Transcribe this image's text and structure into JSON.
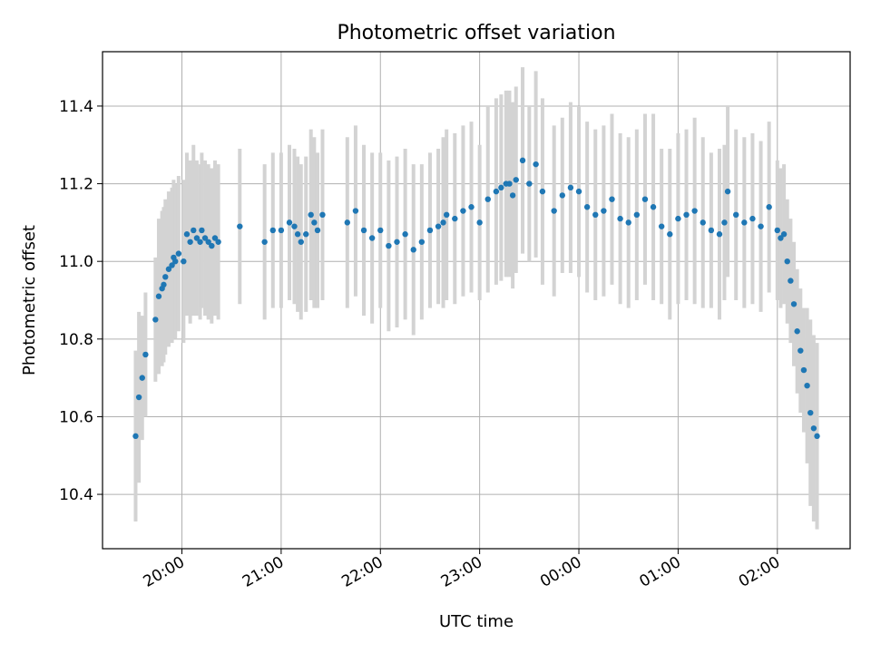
{
  "chart_data": {
    "type": "scatter",
    "title": "Photometric offset variation",
    "xlabel": "UTC time",
    "ylabel": "Photometric offset",
    "x_unit": "UTC clock time (hours after midnight of the first night; values above 24 are after midnight)",
    "xlim": [
      "19:12",
      "02:44"
    ],
    "ylim": [
      10.26,
      11.54
    ],
    "x_ticks": [
      "20:00",
      "21:00",
      "22:00",
      "23:00",
      "00:00",
      "01:00",
      "02:00"
    ],
    "y_ticks": [
      "10.4",
      "10.6",
      "10.8",
      "11.0",
      "11.2",
      "11.4"
    ],
    "grid": true,
    "point_color": "#1f77b4",
    "errorbar_color": "#d3d3d3",
    "series": [
      {
        "name": "",
        "x": [
          "19:32",
          "19:34",
          "19:36",
          "19:38",
          "19:44",
          "19:46",
          "19:48",
          "19:49",
          "19:50",
          "19:52",
          "19:54",
          "19:55",
          "19:56",
          "19:58",
          "20:01",
          "20:03",
          "20:05",
          "20:07",
          "20:09",
          "20:11",
          "20:12",
          "20:14",
          "20:16",
          "20:18",
          "20:20",
          "20:22",
          "20:35",
          "20:50",
          "20:55",
          "21:00",
          "21:05",
          "21:08",
          "21:10",
          "21:12",
          "21:15",
          "21:18",
          "21:20",
          "21:22",
          "21:25",
          "21:40",
          "21:45",
          "21:50",
          "21:55",
          "22:00",
          "22:05",
          "22:10",
          "22:15",
          "22:20",
          "22:25",
          "22:30",
          "22:35",
          "22:38",
          "22:40",
          "22:45",
          "22:50",
          "22:55",
          "23:00",
          "23:05",
          "23:10",
          "23:13",
          "23:16",
          "23:18",
          "23:20",
          "23:22",
          "23:26",
          "23:30",
          "23:34",
          "23:38",
          "23:45",
          "23:50",
          "23:55",
          "00:00",
          "00:05",
          "00:10",
          "00:15",
          "00:20",
          "00:25",
          "00:30",
          "00:35",
          "00:40",
          "00:45",
          "00:50",
          "00:55",
          "01:00",
          "01:05",
          "01:10",
          "01:15",
          "01:20",
          "01:25",
          "01:28",
          "01:30",
          "01:35",
          "01:40",
          "01:45",
          "01:50",
          "01:55",
          "02:00",
          "02:02",
          "02:04",
          "02:06",
          "02:08",
          "02:10",
          "02:12",
          "02:14",
          "02:16",
          "02:18",
          "02:20",
          "02:22",
          "02:24"
        ],
        "y": [
          10.55,
          10.65,
          10.7,
          10.76,
          10.85,
          10.91,
          10.93,
          10.94,
          10.96,
          10.98,
          10.99,
          11.01,
          11.0,
          11.02,
          11.0,
          11.07,
          11.05,
          11.08,
          11.06,
          11.05,
          11.08,
          11.06,
          11.05,
          11.04,
          11.06,
          11.05,
          11.09,
          11.05,
          11.08,
          11.08,
          11.1,
          11.09,
          11.07,
          11.05,
          11.07,
          11.12,
          11.1,
          11.08,
          11.12,
          11.1,
          11.13,
          11.08,
          11.06,
          11.08,
          11.04,
          11.05,
          11.07,
          11.03,
          11.05,
          11.08,
          11.09,
          11.1,
          11.12,
          11.11,
          11.13,
          11.14,
          11.1,
          11.16,
          11.18,
          11.19,
          11.2,
          11.2,
          11.17,
          11.21,
          11.26,
          11.2,
          11.25,
          11.18,
          11.13,
          11.17,
          11.19,
          11.18,
          11.14,
          11.12,
          11.13,
          11.16,
          11.11,
          11.1,
          11.12,
          11.16,
          11.14,
          11.09,
          11.07,
          11.11,
          11.12,
          11.13,
          11.1,
          11.08,
          11.07,
          11.1,
          11.18,
          11.12,
          11.1,
          11.11,
          11.09,
          11.14,
          11.08,
          11.06,
          11.07,
          11.0,
          10.95,
          10.89,
          10.82,
          10.77,
          10.72,
          10.68,
          10.61,
          10.57,
          10.55
        ],
        "err": [
          0.22,
          0.22,
          0.16,
          0.16,
          0.16,
          0.2,
          0.2,
          0.2,
          0.2,
          0.2,
          0.2,
          0.2,
          0.2,
          0.2,
          0.21,
          0.21,
          0.21,
          0.22,
          0.2,
          0.2,
          0.2,
          0.2,
          0.2,
          0.2,
          0.2,
          0.2,
          0.2,
          0.2,
          0.2,
          0.2,
          0.2,
          0.2,
          0.2,
          0.2,
          0.2,
          0.22,
          0.22,
          0.2,
          0.22,
          0.22,
          0.22,
          0.22,
          0.22,
          0.2,
          0.22,
          0.22,
          0.22,
          0.22,
          0.2,
          0.2,
          0.2,
          0.22,
          0.22,
          0.22,
          0.22,
          0.22,
          0.2,
          0.24,
          0.24,
          0.24,
          0.24,
          0.24,
          0.24,
          0.24,
          0.24,
          0.2,
          0.24,
          0.24,
          0.22,
          0.2,
          0.22,
          0.22,
          0.22,
          0.22,
          0.22,
          0.22,
          0.22,
          0.22,
          0.22,
          0.22,
          0.24,
          0.2,
          0.22,
          0.22,
          0.22,
          0.24,
          0.22,
          0.2,
          0.22,
          0.2,
          0.22,
          0.22,
          0.22,
          0.22,
          0.22,
          0.22,
          0.18,
          0.18,
          0.18,
          0.16,
          0.16,
          0.16,
          0.16,
          0.16,
          0.16,
          0.2,
          0.24,
          0.24,
          0.24
        ]
      }
    ]
  }
}
